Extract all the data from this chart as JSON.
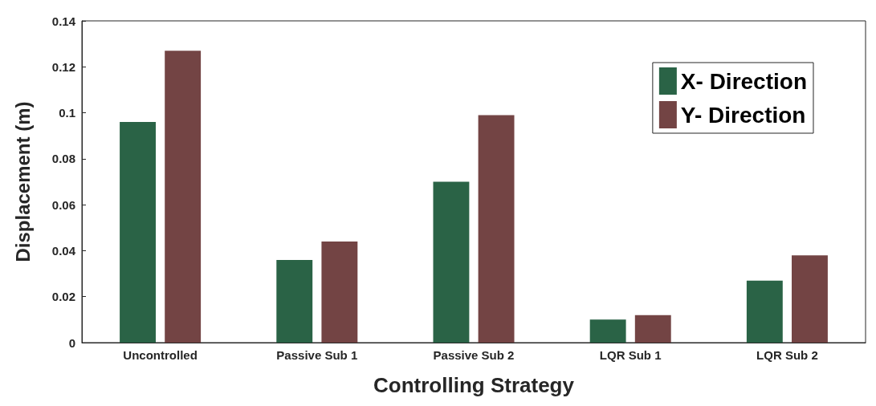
{
  "chart_data": {
    "type": "bar",
    "xlabel": "Controlling Strategy",
    "ylabel": "Displacement (m)",
    "categories": [
      "Uncontrolled",
      "Passive Sub 1",
      "Passive Sub 2",
      "LQR Sub 1",
      "LQR Sub 2"
    ],
    "series": [
      {
        "name": "X- Direction",
        "color": "#2a6346",
        "values": [
          0.096,
          0.036,
          0.07,
          0.01,
          0.027
        ]
      },
      {
        "name": "Y- Direction",
        "color": "#734444",
        "values": [
          0.127,
          0.044,
          0.099,
          0.012,
          0.038
        ]
      }
    ],
    "ylim": [
      0,
      0.14
    ],
    "yticks": [
      0,
      0.02,
      0.04,
      0.06,
      0.08,
      0.1,
      0.12,
      0.14
    ],
    "grid": false,
    "legend": "top right"
  }
}
